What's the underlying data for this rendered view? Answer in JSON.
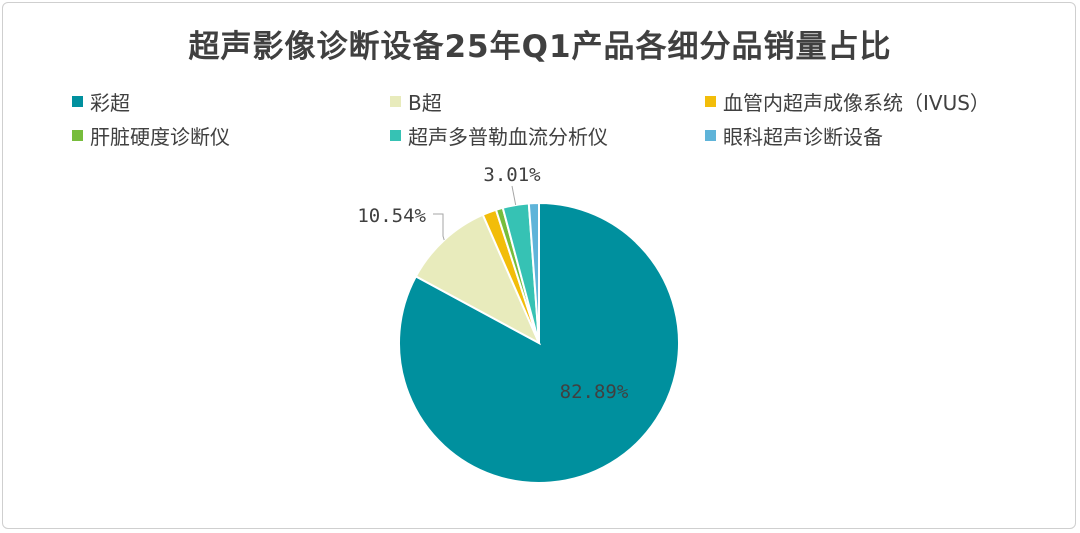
{
  "chart_data": {
    "type": "pie",
    "title": "超声影像诊断设备25年Q1产品各细分品销量占比",
    "categories": [
      "彩超",
      "B超",
      "血管内超声成像系统（IVUS）",
      "肝脏硬度诊断仪",
      "超声多普勒血流分析仪",
      "眼科超声诊断设备"
    ],
    "values": [
      82.89,
      10.54,
      1.6,
      0.8,
      3.01,
      1.16
    ],
    "colors": [
      "#00909e",
      "#e8ebbc",
      "#f2bd0a",
      "#77bd3c",
      "#36c2b4",
      "#5fb4d9"
    ],
    "data_labels": [
      "82.89%",
      "10.54%",
      "",
      "",
      "3.01%",
      ""
    ],
    "legend_position": "top",
    "start_angle_deg": 0,
    "direction": "clockwise"
  }
}
